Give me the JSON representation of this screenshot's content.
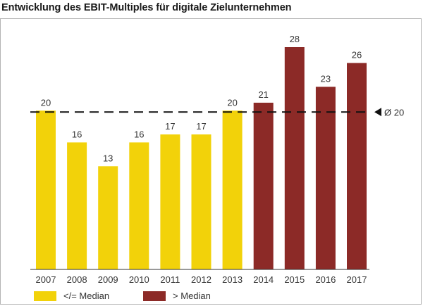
{
  "title": "Entwicklung des EBIT-Multiples für digitale Zielunternehmen",
  "chart_data": {
    "type": "bar",
    "categories": [
      "2007",
      "2008",
      "2009",
      "2010",
      "2011",
      "2012",
      "2013",
      "2014",
      "2015",
      "2016",
      "2017"
    ],
    "values": [
      20,
      16,
      13,
      16,
      17,
      17,
      20,
      21,
      28,
      23,
      26
    ],
    "value_labels": [
      "20",
      "16",
      "13",
      "16",
      "17",
      "17",
      "20",
      "21",
      "28",
      "23",
      "26"
    ],
    "groups": [
      "le",
      "le",
      "le",
      "le",
      "le",
      "le",
      "le",
      "gt",
      "gt",
      "gt",
      "gt"
    ],
    "legend": [
      {
        "key": "le",
        "label": "</= Median",
        "color": "#f2d20a"
      },
      {
        "key": "gt",
        "label": "> Median",
        "color": "#8c2a27"
      }
    ],
    "average": {
      "value": 20,
      "label": "Ø 20"
    },
    "ylim": [
      0,
      30
    ],
    "grid": false,
    "legend_position": "bottom-left",
    "xlabel": "",
    "ylabel": ""
  }
}
